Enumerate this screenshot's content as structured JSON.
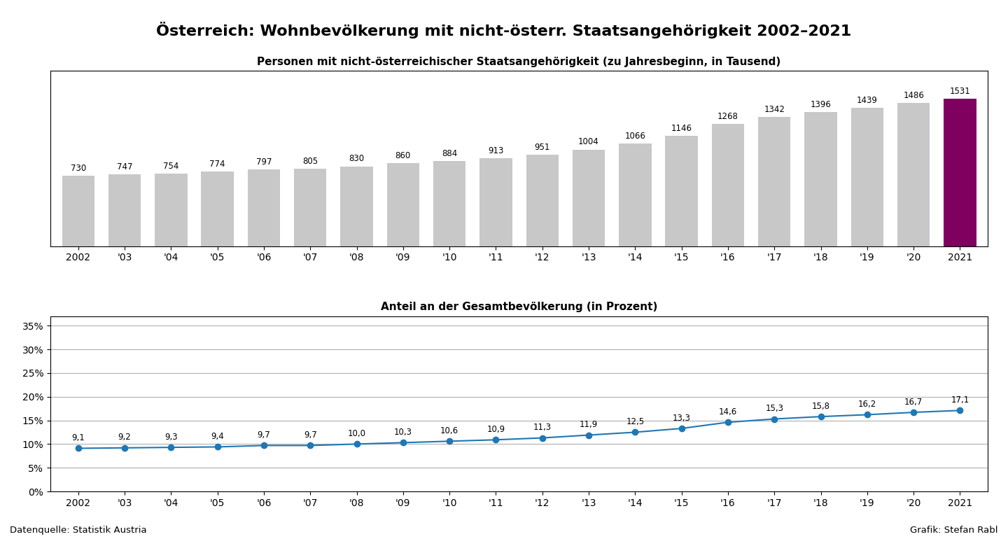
{
  "title": "Österreich: Wohnbevölkerung mit nicht-österr. Staatsangehörigkeit 2002–2021",
  "annotations": [
    "Datenquelle: Statistik Austria",
    "Grafik: Stefan Rabl"
  ],
  "chart_data": [
    {
      "type": "bar",
      "title": "Personen mit nicht-österreichischer Staatsangehörigkeit (zu Jahresbeginn, in Tausend)",
      "categories": [
        "2002",
        "'03",
        "'04",
        "'05",
        "'06",
        "'07",
        "'08",
        "'09",
        "'10",
        "'11",
        "'12",
        "'13",
        "'14",
        "'15",
        "'16",
        "'17",
        "'18",
        "'19",
        "'20",
        "2021"
      ],
      "values": [
        730,
        747,
        754,
        774,
        797,
        805,
        830,
        860,
        884,
        913,
        951,
        1004,
        1066,
        1146,
        1268,
        1342,
        1396,
        1439,
        1486,
        1531
      ],
      "colors": [
        "#C8C8C8",
        "#C8C8C8",
        "#C8C8C8",
        "#C8C8C8",
        "#C8C8C8",
        "#C8C8C8",
        "#C8C8C8",
        "#C8C8C8",
        "#C8C8C8",
        "#C8C8C8",
        "#C8C8C8",
        "#C8C8C8",
        "#C8C8C8",
        "#C8C8C8",
        "#C8C8C8",
        "#C8C8C8",
        "#C8C8C8",
        "#C8C8C8",
        "#C8C8C8",
        "#800060"
      ],
      "ylim": [
        0,
        1820
      ],
      "tick_labels": "x",
      "data_labels": true
    },
    {
      "type": "line",
      "title": "Anteil an der Gesamtbevölkerung (in Prozent)",
      "categories": [
        "2002",
        "'03",
        "'04",
        "'05",
        "'06",
        "'07",
        "'08",
        "'09",
        "'10",
        "'11",
        "'12",
        "'13",
        "'14",
        "'15",
        "'16",
        "'17",
        "'18",
        "'19",
        "'20",
        "2021"
      ],
      "values": [
        9.1,
        9.2,
        9.3,
        9.4,
        9.7,
        9.7,
        10.0,
        10.3,
        10.6,
        10.9,
        11.3,
        11.9,
        12.5,
        13.3,
        14.6,
        15.3,
        15.8,
        16.2,
        16.7,
        17.1
      ],
      "value_labels": [
        "9,1",
        "9,2",
        "9,3",
        "9,4",
        "9,7",
        "9,7",
        "10,0",
        "10,3",
        "10,6",
        "10,9",
        "11,3",
        "11,9",
        "12,5",
        "13,3",
        "14,6",
        "15,3",
        "15,8",
        "16,2",
        "16,7",
        "17,1"
      ],
      "ylim": [
        0,
        37
      ],
      "yticks": [
        {
          "value": 0,
          "label": "0%"
        },
        {
          "value": 5,
          "label": "5%"
        },
        {
          "value": 10,
          "label": "10%"
        },
        {
          "value": 15,
          "label": "15%"
        },
        {
          "value": 20,
          "label": "20%"
        },
        {
          "value": 25,
          "label": "25%"
        },
        {
          "value": 30,
          "label": "30%"
        },
        {
          "value": 35,
          "label": "35%"
        }
      ],
      "grid": true,
      "marker": "o",
      "line_style": "solid",
      "data_labels": true
    }
  ]
}
